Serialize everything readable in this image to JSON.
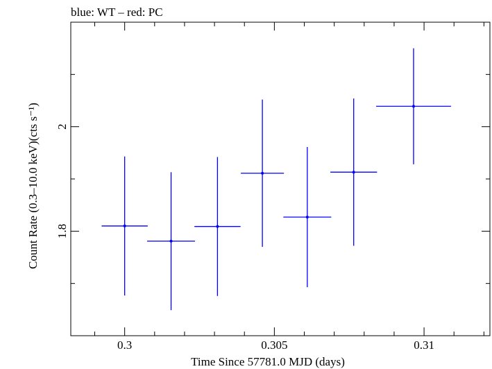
{
  "chart_data": {
    "type": "scatter",
    "title": "blue: WT – red: PC",
    "xlabel": "Time Since 57781.0 MJD (days)",
    "ylabel": "Count Rate (0.3–10.0 keV)(cts s⁻¹)",
    "xlim": [
      0.2982,
      0.3122
    ],
    "ylim": [
      1.6,
      2.2
    ],
    "x_ticks": [
      {
        "value": 0.3,
        "label": "0.3"
      },
      {
        "value": 0.305,
        "label": "0.305"
      },
      {
        "value": 0.31,
        "label": "0.31"
      }
    ],
    "y_ticks": [
      {
        "value": 1.8,
        "label": "1.8"
      },
      {
        "value": 2.0,
        "label": "2"
      }
    ],
    "series": [
      {
        "color": "#0000ff",
        "points": [
          {
            "x": 0.3,
            "xerr": 0.00077,
            "y": 1.81,
            "yerr": 0.133
          },
          {
            "x": 0.30155,
            "xerr": 0.0008,
            "y": 1.781,
            "yerr": 0.132
          },
          {
            "x": 0.3031,
            "xerr": 0.00077,
            "y": 1.809,
            "yerr": 0.133
          },
          {
            "x": 0.3046,
            "xerr": 0.00072,
            "y": 1.911,
            "yerr": 0.141
          },
          {
            "x": 0.3061,
            "xerr": 0.0008,
            "y": 1.827,
            "yerr": 0.134
          },
          {
            "x": 0.30765,
            "xerr": 0.00078,
            "y": 1.913,
            "yerr": 0.141
          },
          {
            "x": 0.30965,
            "xerr": 0.00125,
            "y": 2.039,
            "yerr": 0.111
          }
        ]
      }
    ]
  }
}
